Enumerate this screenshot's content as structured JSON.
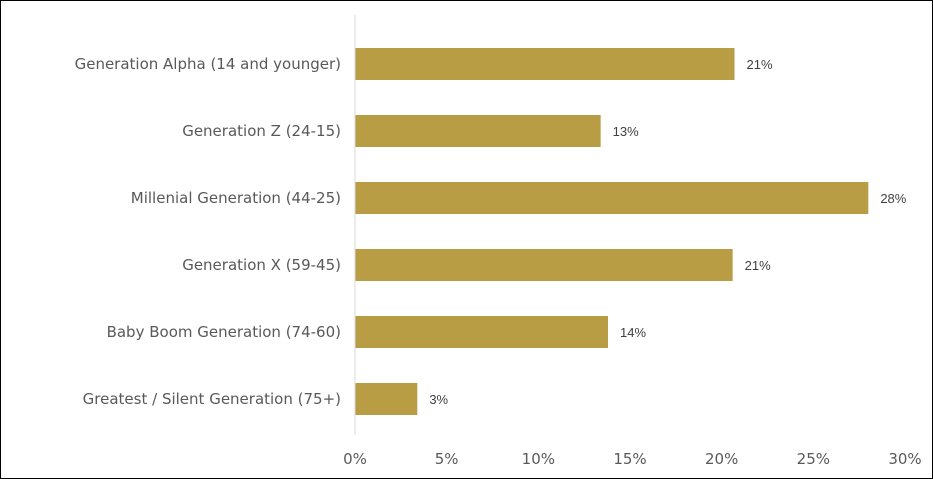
{
  "chart_data": {
    "type": "bar",
    "orientation": "horizontal",
    "title": "",
    "xlabel": "",
    "ylabel": "",
    "categories": [
      "Generation Alpha (14 and younger)",
      "Generation Z (24-15)",
      "Millenial Generation (44-25)",
      "Generation X (59-45)",
      "Baby Boom Generation (74-60)",
      "Greatest / Silent Generation (75+)"
    ],
    "values": [
      20.7,
      13.4,
      28.0,
      20.6,
      13.8,
      3.4
    ],
    "data_labels": [
      "21%",
      "13%",
      "28%",
      "21%",
      "14%",
      "3%"
    ],
    "x_ticks": [
      0,
      5,
      10,
      15,
      20,
      25,
      30
    ],
    "x_tick_labels": [
      "0%",
      "5%",
      "10%",
      "15%",
      "20%",
      "25%",
      "30%"
    ],
    "xlim": [
      0,
      30
    ],
    "bar_color": "#B99D44",
    "axis_line_color": "#D9D9D9",
    "grid": false,
    "legend": "none"
  }
}
